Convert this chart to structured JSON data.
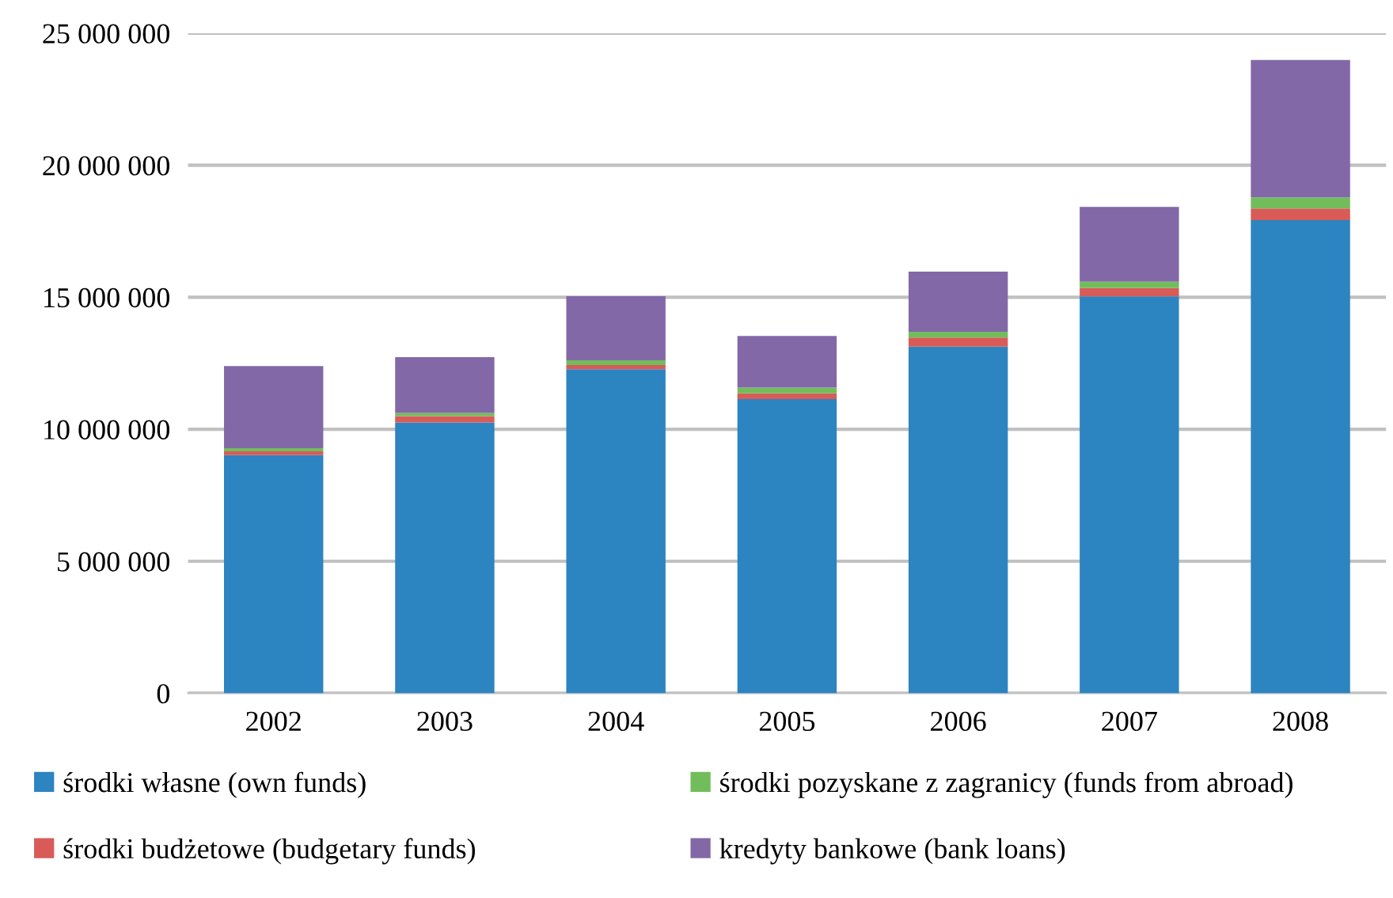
{
  "chart_data": {
    "type": "bar",
    "stacked": true,
    "categories": [
      "2002",
      "2003",
      "2004",
      "2005",
      "2006",
      "2007",
      "2008"
    ],
    "series": [
      {
        "name": "środki własne (own funds)",
        "color": "#2c84c0",
        "values": [
          9020000,
          10260000,
          12270000,
          11140000,
          13130000,
          15030000,
          17920000
        ]
      },
      {
        "name": "środki budżetowe (budgetary funds)",
        "color": "#d85b58",
        "values": [
          140000,
          240000,
          160000,
          220000,
          340000,
          320000,
          440000
        ]
      },
      {
        "name": "środki pozyskane z zagranicy (funds from abroad)",
        "color": "#72bd5b",
        "values": [
          120000,
          120000,
          180000,
          220000,
          220000,
          240000,
          420000
        ]
      },
      {
        "name": "kredyty bankowe (bank loans)",
        "color": "#8368a7",
        "values": [
          3110000,
          2110000,
          2430000,
          1950000,
          2280000,
          2830000,
          5210000
        ]
      }
    ],
    "ylim": [
      0,
      25000000
    ],
    "yticks": [
      {
        "value": 0,
        "label": "0"
      },
      {
        "value": 5000000,
        "label": "5 000 000"
      },
      {
        "value": 10000000,
        "label": "10 000 000"
      },
      {
        "value": 15000000,
        "label": "15 000 000"
      },
      {
        "value": 20000000,
        "label": "20 000 000"
      },
      {
        "value": 25000000,
        "label": "25 000 000"
      }
    ],
    "grid": "y",
    "legend": "bottom"
  }
}
